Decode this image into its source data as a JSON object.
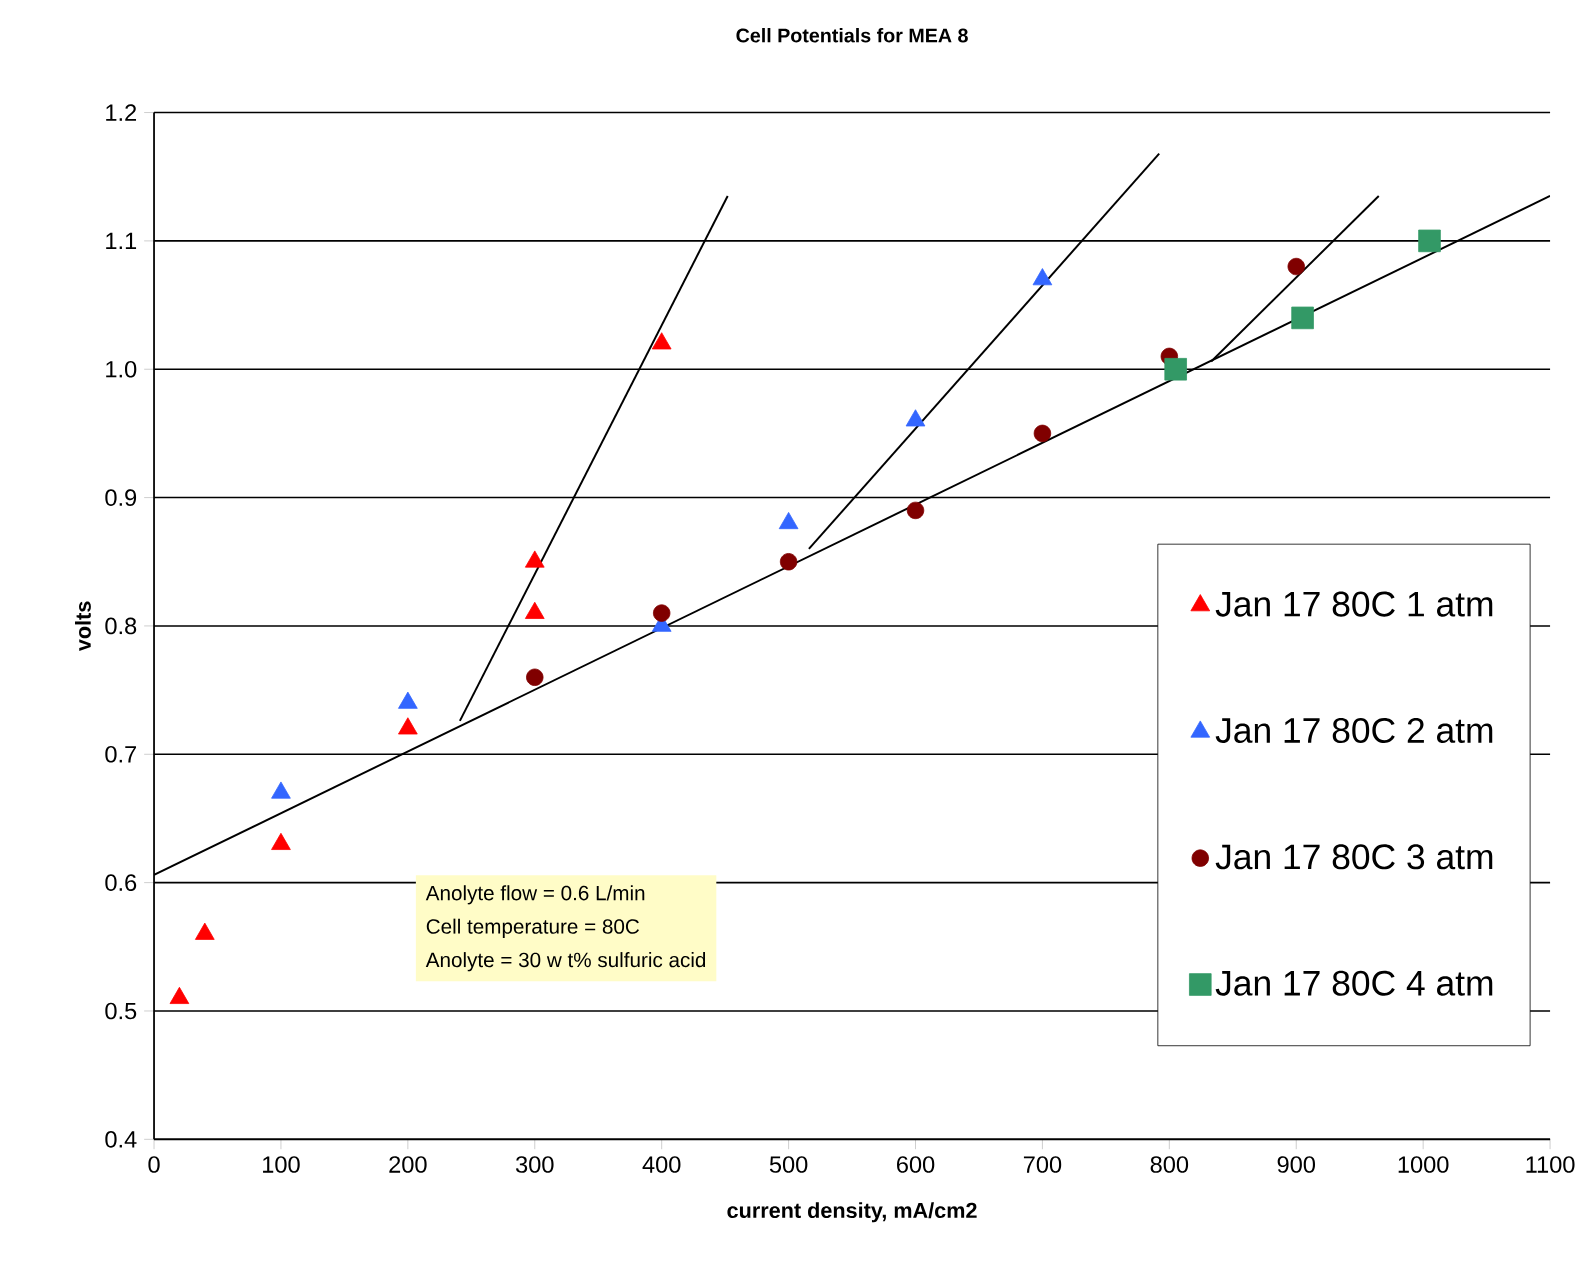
{
  "chart_data": {
    "type": "scatter",
    "title": "Cell Potentials for MEA 8",
    "xlabel": "current density, mA/cm2",
    "ylabel": "volts",
    "xlim": [
      0,
      1100
    ],
    "ylim": [
      0.4,
      1.2
    ],
    "xticks": [
      0,
      100,
      200,
      300,
      400,
      500,
      600,
      700,
      800,
      900,
      1000,
      1100
    ],
    "yticks": [
      {
        "value": 0.4,
        "label": "0.4"
      },
      {
        "value": 0.5,
        "label": "0.5"
      },
      {
        "value": 0.6,
        "label": "0.6"
      },
      {
        "value": 0.7,
        "label": "0.7"
      },
      {
        "value": 0.8,
        "label": "0.8"
      },
      {
        "value": 0.9,
        "label": "0.9"
      },
      {
        "value": 1.0,
        "label": "1.0"
      },
      {
        "value": 1.1,
        "label": "1.1"
      },
      {
        "value": 1.2,
        "label": "1.2"
      }
    ],
    "grid": "y",
    "legend": "right",
    "annotations": [
      "Anolyte flow  = 0.6 L/min",
      "Cell temperature = 80C",
      "Anolyte = 30 w t% sulfuric acid"
    ],
    "series": [
      {
        "name": "Jan 17 80C 1 atm",
        "color": "#ff0000",
        "marker": "triangle",
        "x": [
          20,
          40,
          100,
          200,
          300,
          300,
          400
        ],
        "values": [
          0.51,
          0.56,
          0.63,
          0.72,
          0.81,
          0.85,
          1.02
        ]
      },
      {
        "name": "Jan 17 80C 2 atm",
        "color": "#3366ff",
        "marker": "triangle",
        "x": [
          100,
          200,
          300,
          400,
          500,
          600,
          700
        ],
        "values": [
          0.67,
          0.74,
          null,
          0.8,
          0.88,
          0.96,
          1.07
        ]
      },
      {
        "name": "Jan 17 80C 3 atm",
        "color": "#800000",
        "marker": "circle",
        "x": [
          300,
          400,
          500,
          600,
          700,
          800,
          900
        ],
        "values": [
          0.76,
          0.81,
          0.85,
          0.89,
          0.95,
          1.01,
          1.08
        ]
      },
      {
        "name": "Jan 17 80C 4 atm",
        "color": "#339966",
        "marker": "square",
        "x": [
          805,
          905,
          1005
        ],
        "values": [
          1.0,
          1.04,
          1.1
        ]
      },
      {
        "type": "line",
        "color": "#000000",
        "marker": "none",
        "x": [
          0,
          1100
        ],
        "values": [
          0.606,
          1.135
        ]
      },
      {
        "type": "line",
        "color": "#000000",
        "marker": "none",
        "x": [
          241,
          452
        ],
        "values": [
          0.726,
          1.135
        ]
      },
      {
        "type": "line",
        "color": "#000000",
        "marker": "none",
        "x": [
          516,
          792
        ],
        "values": [
          0.86,
          1.168
        ]
      },
      {
        "type": "line",
        "color": "#000000",
        "marker": "none",
        "x": [
          833,
          965
        ],
        "values": [
          1.006,
          1.135
        ]
      }
    ]
  }
}
